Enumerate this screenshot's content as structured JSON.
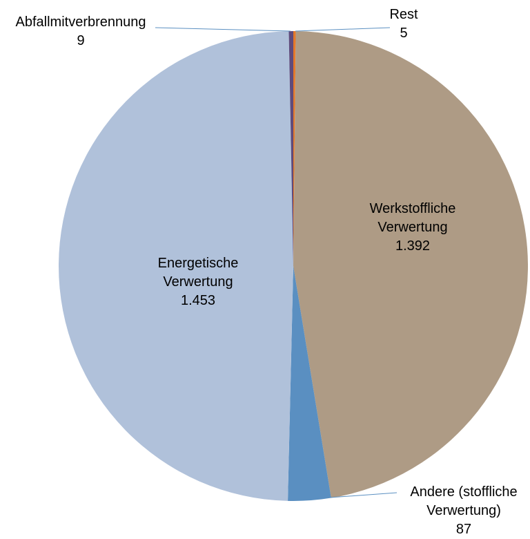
{
  "chart_data": {
    "type": "pie",
    "categories": [
      "Rest",
      "Werkstoffliche Verwertung",
      "Andere (stoffliche Verwertung)",
      "Energetische Verwertung",
      "Abfallmitverbrennung"
    ],
    "values": [
      5,
      1392,
      87,
      1453,
      9
    ],
    "value_labels": [
      "5",
      "1.392",
      "87",
      "1.453",
      "9"
    ],
    "colors": [
      "#e4782a",
      "#ae9b85",
      "#5a8fc1",
      "#b0c1da",
      "#5e4b7c"
    ]
  }
}
